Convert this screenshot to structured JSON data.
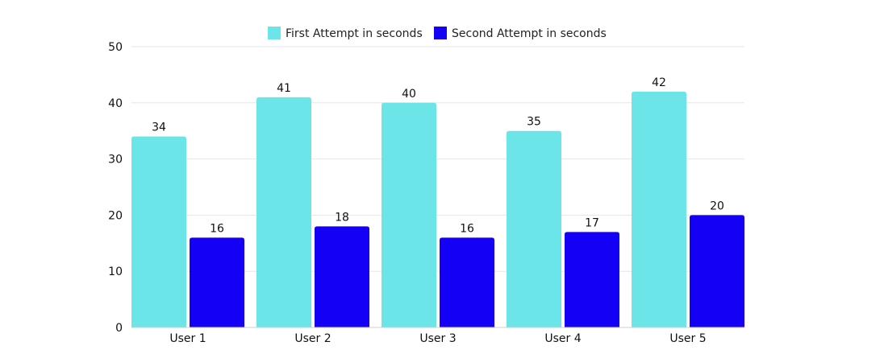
{
  "chart_data": {
    "type": "bar",
    "categories": [
      "User 1",
      "User 2",
      "User 3",
      "User 4",
      "User 5"
    ],
    "series": [
      {
        "name": "First Attempt in seconds",
        "values": [
          34,
          41,
          40,
          35,
          42
        ],
        "color": "#6CE5E8"
      },
      {
        "name": "Second Attempt in seconds",
        "values": [
          16,
          18,
          16,
          17,
          20
        ],
        "color": "#1400F5"
      }
    ],
    "ylim": [
      0,
      50
    ],
    "yticks": [
      0,
      10,
      20,
      30,
      40,
      50
    ],
    "grid": true,
    "legend_position": "top-center",
    "data_labels": true
  }
}
